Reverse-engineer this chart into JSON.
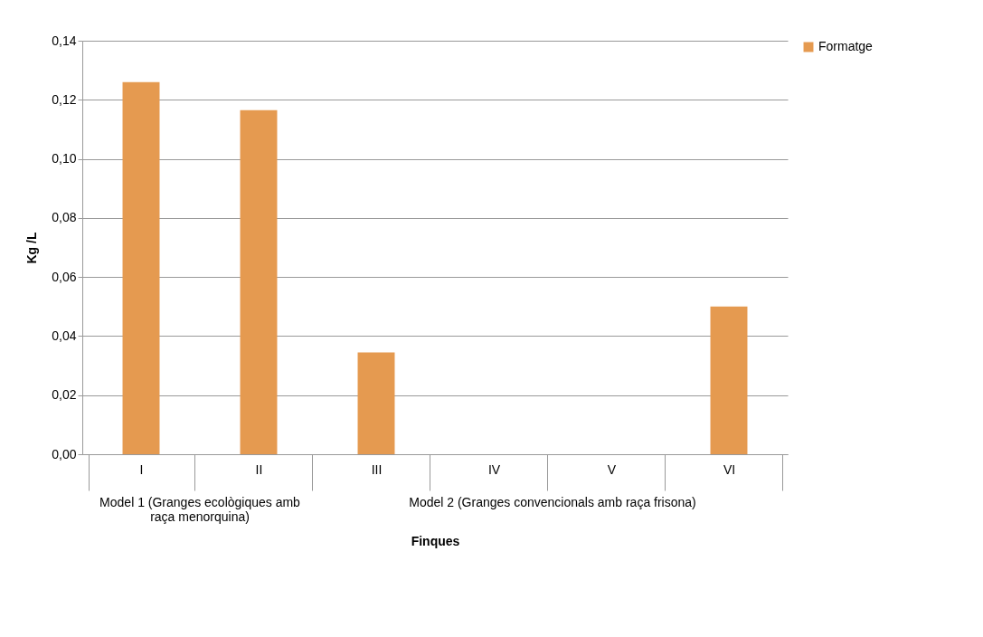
{
  "chart_data": {
    "type": "bar",
    "categories": [
      "I",
      "II",
      "III",
      "IV",
      "V",
      "VI"
    ],
    "series": [
      {
        "name": "Formatge",
        "color": "#e59a50",
        "values": [
          0.126,
          0.1165,
          0.0345,
          0,
          0,
          0.05
        ]
      }
    ],
    "ylabel": "Kg /L",
    "xlabel": "Finques",
    "ylim": [
      0,
      0.14
    ],
    "yticks": [
      {
        "value": 0,
        "label": "0,00"
      },
      {
        "value": 0.02,
        "label": "0,02"
      },
      {
        "value": 0.04,
        "label": "0,04"
      },
      {
        "value": 0.06,
        "label": "0,06"
      },
      {
        "value": 0.08,
        "label": "0,08"
      },
      {
        "value": 0.1,
        "label": "0,10"
      },
      {
        "value": 0.12,
        "label": "0,12"
      },
      {
        "value": 0.14,
        "label": "0,14"
      }
    ],
    "grid": "y",
    "legend": "right",
    "annotations": [
      "Model 1 (Granges ecològiques amb raça menorquina)",
      "Model 2 (Granges convencionals amb raça frisona)"
    ]
  }
}
